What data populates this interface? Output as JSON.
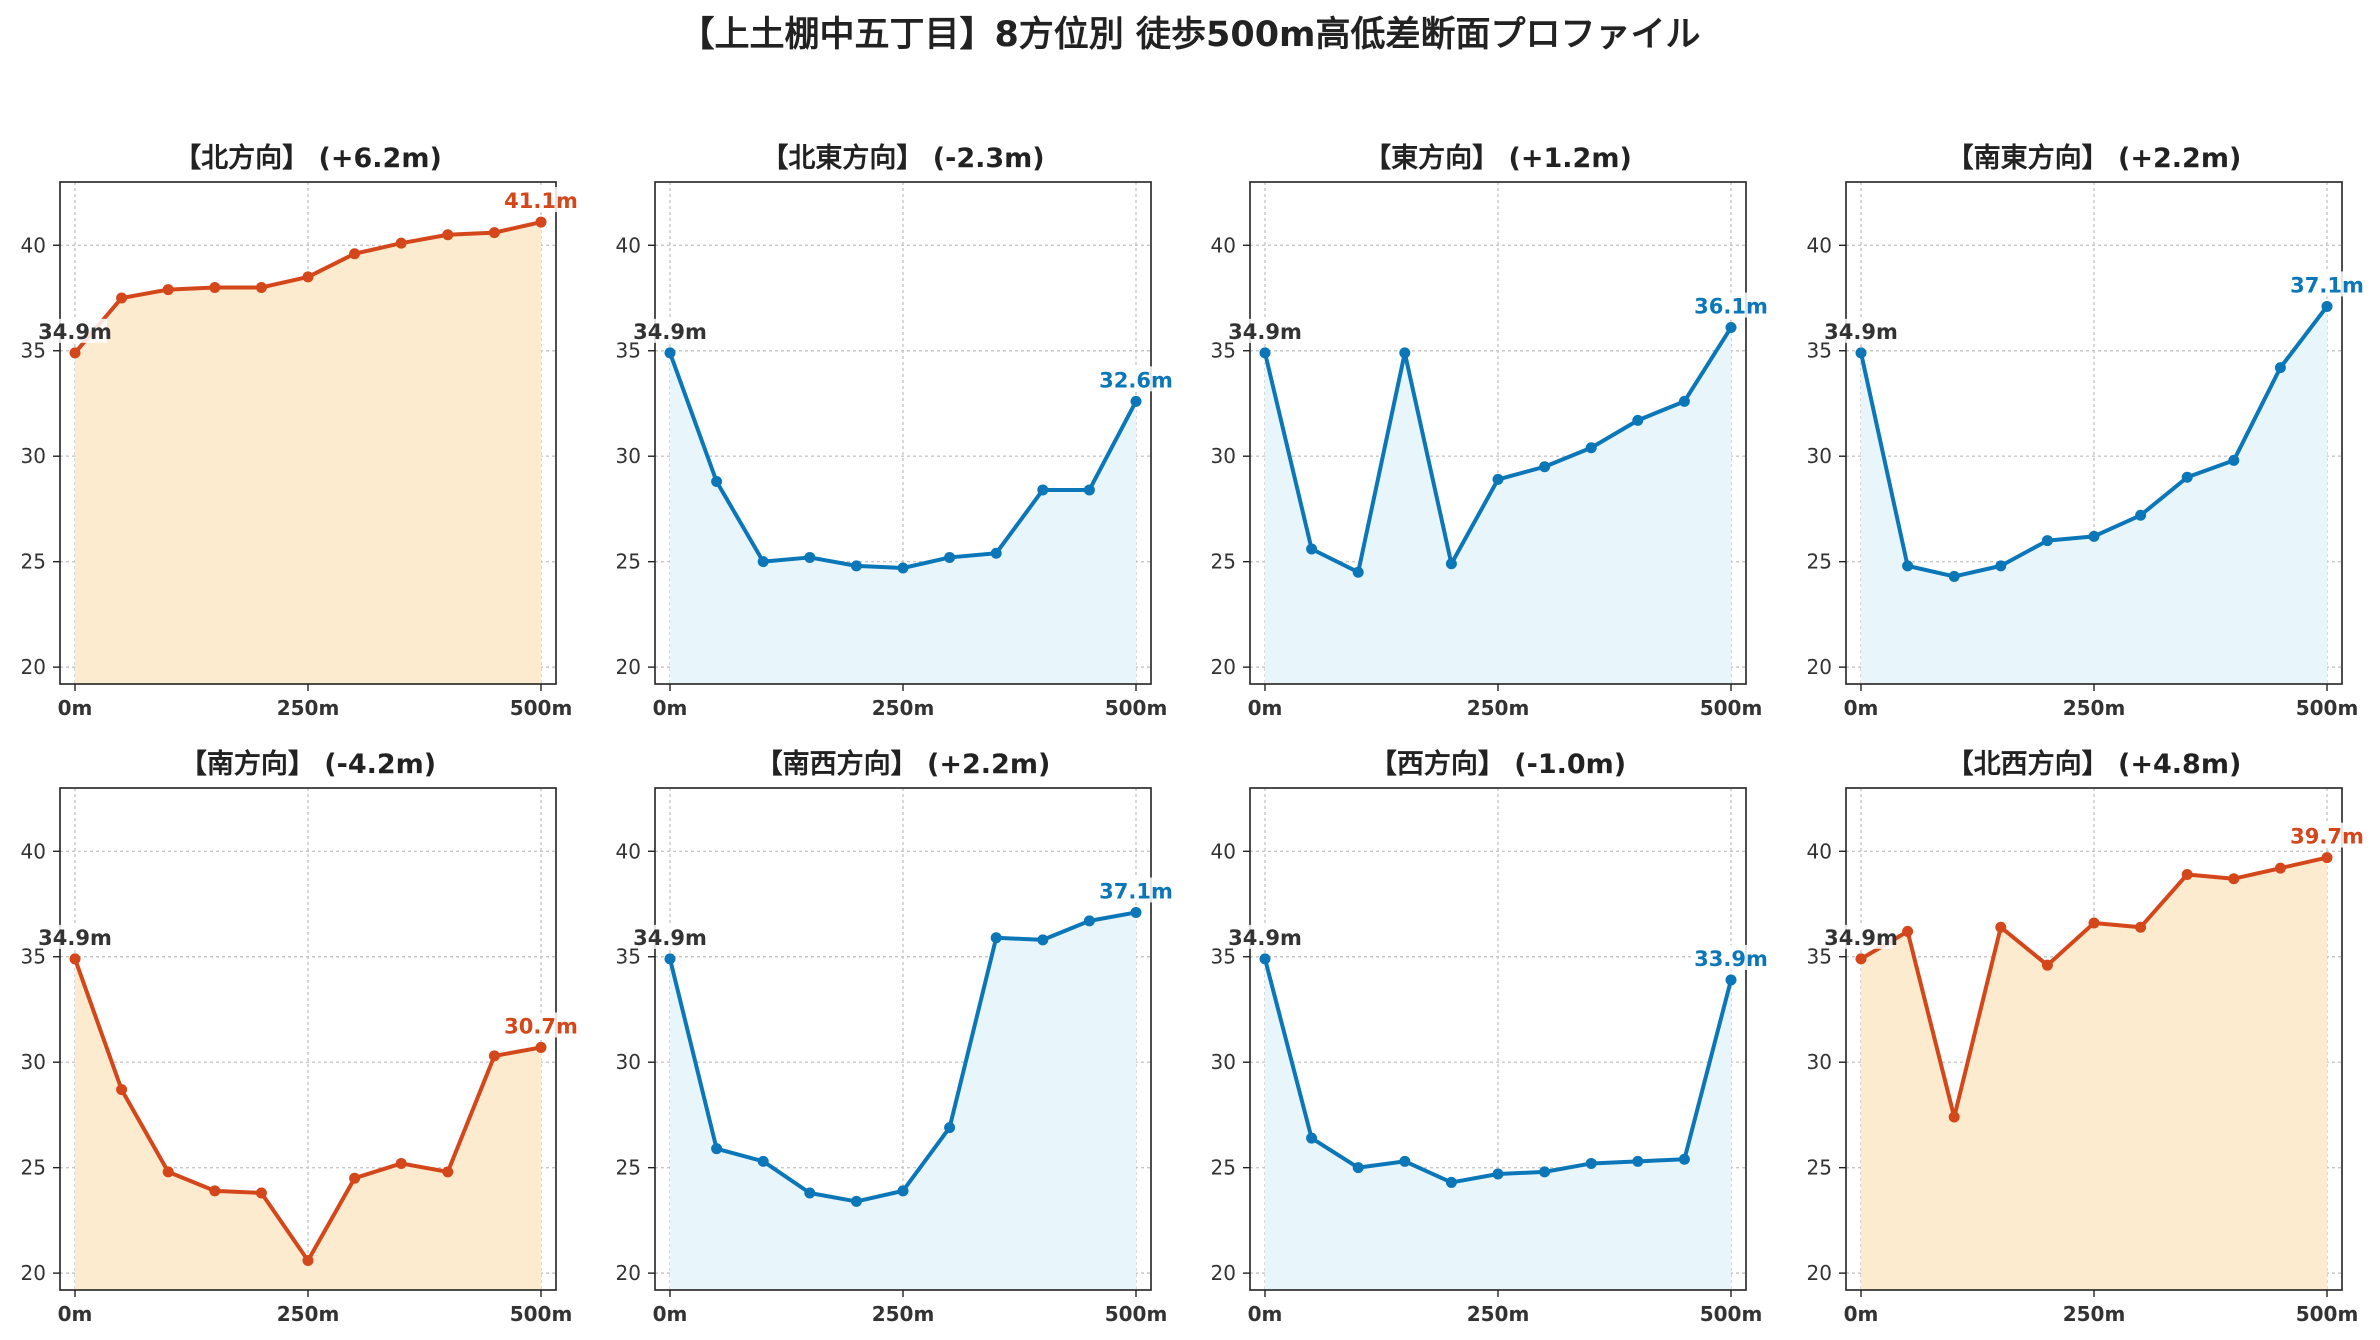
{
  "title": "【上土棚中五丁目】8方位別 徒歩500m高低差断面プロファイル",
  "colors": {
    "up": "#d4471a",
    "down": "#0b77b8",
    "up_fill": "#fdebd0",
    "down_fill": "#e8f6fc",
    "start_label": "#333333"
  },
  "chart_data": [
    {
      "type": "area",
      "title": "【北方向】 (+6.2m)",
      "trend": "up",
      "x": [
        0,
        50,
        100,
        150,
        200,
        250,
        300,
        350,
        400,
        450,
        500
      ],
      "y": [
        34.9,
        37.5,
        37.9,
        38.0,
        38.0,
        38.5,
        39.6,
        40.1,
        40.5,
        40.6,
        41.1
      ],
      "start_label": "34.9m",
      "end_label": "41.1m",
      "xticks": [
        "0m",
        "250m",
        "500m"
      ],
      "yticks": [
        "20",
        "25",
        "30",
        "35",
        "40"
      ],
      "xlim": [
        0,
        500
      ],
      "ylim": [
        19.2,
        43.0
      ],
      "grid": true
    },
    {
      "type": "area",
      "title": "【北東方向】 (-2.3m)",
      "trend": "down",
      "x": [
        0,
        50,
        100,
        150,
        200,
        250,
        300,
        350,
        400,
        450,
        500
      ],
      "y": [
        34.9,
        28.8,
        25.0,
        25.2,
        24.8,
        24.7,
        25.2,
        25.4,
        28.4,
        28.4,
        32.6
      ],
      "start_label": "34.9m",
      "end_label": "32.6m",
      "xticks": [
        "0m",
        "250m",
        "500m"
      ],
      "yticks": [
        "20",
        "25",
        "30",
        "35",
        "40"
      ],
      "xlim": [
        0,
        500
      ],
      "ylim": [
        19.2,
        43.0
      ],
      "grid": true
    },
    {
      "type": "area",
      "title": "【東方向】 (+1.2m)",
      "trend": "down",
      "x": [
        0,
        50,
        100,
        150,
        200,
        250,
        300,
        350,
        400,
        450,
        500
      ],
      "y": [
        34.9,
        25.6,
        24.5,
        34.9,
        24.9,
        28.9,
        29.5,
        30.4,
        31.7,
        32.6,
        36.1
      ],
      "start_label": "34.9m",
      "end_label": "36.1m",
      "xticks": [
        "0m",
        "250m",
        "500m"
      ],
      "yticks": [
        "20",
        "25",
        "30",
        "35",
        "40"
      ],
      "xlim": [
        0,
        500
      ],
      "ylim": [
        19.2,
        43.0
      ],
      "grid": true
    },
    {
      "type": "area",
      "title": "【南東方向】 (+2.2m)",
      "trend": "down",
      "x": [
        0,
        50,
        100,
        150,
        200,
        250,
        300,
        350,
        400,
        450,
        500
      ],
      "y": [
        34.9,
        24.8,
        24.3,
        24.8,
        26.0,
        26.2,
        27.2,
        29.0,
        29.8,
        34.2,
        37.1
      ],
      "start_label": "34.9m",
      "end_label": "37.1m",
      "xticks": [
        "0m",
        "250m",
        "500m"
      ],
      "yticks": [
        "20",
        "25",
        "30",
        "35",
        "40"
      ],
      "xlim": [
        0,
        500
      ],
      "ylim": [
        19.2,
        43.0
      ],
      "grid": true
    },
    {
      "type": "area",
      "title": "【南方向】 (-4.2m)",
      "trend": "up",
      "x": [
        0,
        50,
        100,
        150,
        200,
        250,
        300,
        350,
        400,
        450,
        500
      ],
      "y": [
        34.9,
        28.7,
        24.8,
        23.9,
        23.8,
        20.6,
        24.5,
        25.2,
        24.8,
        30.3,
        30.7
      ],
      "start_label": "34.9m",
      "end_label": "30.7m",
      "xticks": [
        "0m",
        "250m",
        "500m"
      ],
      "yticks": [
        "20",
        "25",
        "30",
        "35",
        "40"
      ],
      "xlim": [
        0,
        500
      ],
      "ylim": [
        19.2,
        43.0
      ],
      "grid": true
    },
    {
      "type": "area",
      "title": "【南西方向】 (+2.2m)",
      "trend": "down",
      "x": [
        0,
        50,
        100,
        150,
        200,
        250,
        300,
        350,
        400,
        450,
        500
      ],
      "y": [
        34.9,
        25.9,
        25.3,
        23.8,
        23.4,
        23.9,
        26.9,
        35.9,
        35.8,
        36.7,
        37.1
      ],
      "start_label": "34.9m",
      "end_label": "37.1m",
      "xticks": [
        "0m",
        "250m",
        "500m"
      ],
      "yticks": [
        "20",
        "25",
        "30",
        "35",
        "40"
      ],
      "xlim": [
        0,
        500
      ],
      "ylim": [
        19.2,
        43.0
      ],
      "grid": true
    },
    {
      "type": "area",
      "title": "【西方向】 (-1.0m)",
      "trend": "down",
      "x": [
        0,
        50,
        100,
        150,
        200,
        250,
        300,
        350,
        400,
        450,
        500
      ],
      "y": [
        34.9,
        26.4,
        25.0,
        25.3,
        24.3,
        24.7,
        24.8,
        25.2,
        25.3,
        25.4,
        33.9
      ],
      "start_label": "34.9m",
      "end_label": "33.9m",
      "xticks": [
        "0m",
        "250m",
        "500m"
      ],
      "yticks": [
        "20",
        "25",
        "30",
        "35",
        "40"
      ],
      "xlim": [
        0,
        500
      ],
      "ylim": [
        19.2,
        43.0
      ],
      "grid": true
    },
    {
      "type": "area",
      "title": "【北西方向】 (+4.8m)",
      "trend": "up",
      "x": [
        0,
        50,
        100,
        150,
        200,
        250,
        300,
        350,
        400,
        450,
        500
      ],
      "y": [
        34.9,
        36.2,
        27.4,
        36.4,
        34.6,
        36.6,
        36.4,
        38.9,
        38.7,
        39.2,
        39.7
      ],
      "start_label": "34.9m",
      "end_label": "39.7m",
      "xticks": [
        "0m",
        "250m",
        "500m"
      ],
      "yticks": [
        "20",
        "25",
        "30",
        "35",
        "40"
      ],
      "xlim": [
        0,
        500
      ],
      "ylim": [
        19.2,
        43.0
      ],
      "grid": true
    }
  ]
}
